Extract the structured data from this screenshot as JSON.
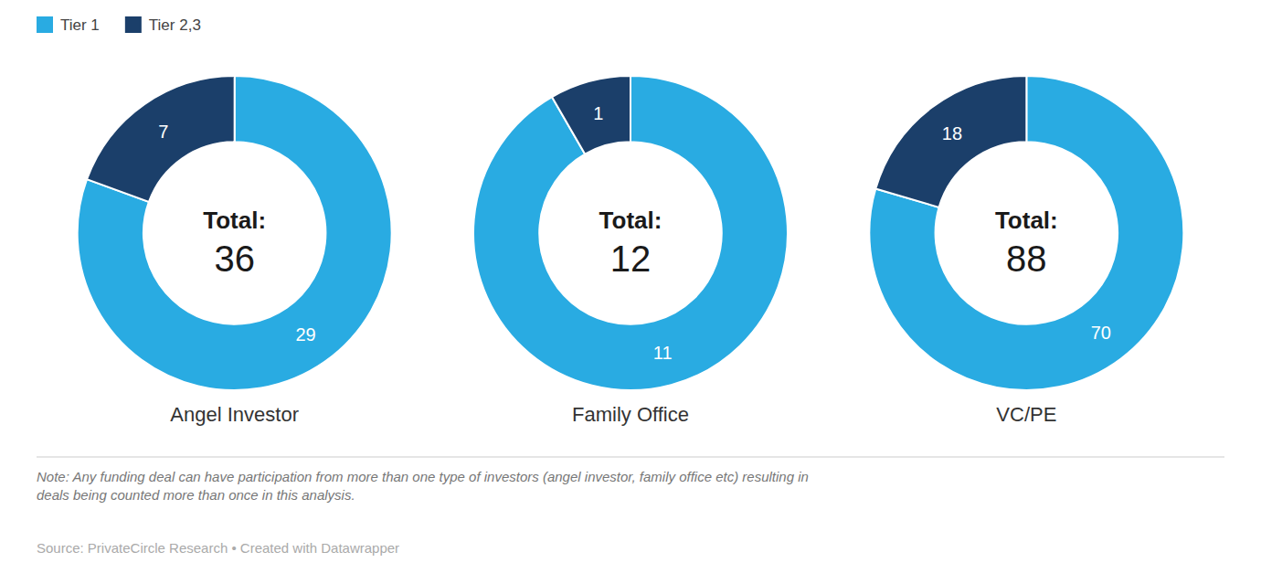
{
  "chart_data": [
    {
      "type": "donut",
      "title": "Angel Investor",
      "categories": [
        "Tier 1",
        "Tier 2,3"
      ],
      "values": [
        29,
        7
      ],
      "colors": [
        "#29abe2",
        "#1b3f6a"
      ],
      "data_labels": true,
      "center_label": "Total:",
      "total": 36,
      "legend": "top-left",
      "note": "Note: Any funding deal can have participation from more than one type of investors (angel investor, family office etc) resulting in\ndeals being counted more than once in this analysis.",
      "source": "Source: PrivateCircle Research • Created with Datawrapper"
    },
    {
      "type": "donut",
      "title": "Family Office",
      "categories": [
        "Tier 1",
        "Tier 2,3"
      ],
      "values": [
        11,
        1
      ],
      "colors": [
        "#29abe2",
        "#1b3f6a"
      ],
      "data_labels": true,
      "center_label": "Total:",
      "total": 12
    },
    {
      "type": "donut",
      "title": "VC/PE",
      "categories": [
        "Tier 1",
        "Tier 2,3"
      ],
      "values": [
        70,
        18
      ],
      "colors": [
        "#29abe2",
        "#1b3f6a"
      ],
      "data_labels": true,
      "center_label": "Total:",
      "total": 88
    }
  ]
}
